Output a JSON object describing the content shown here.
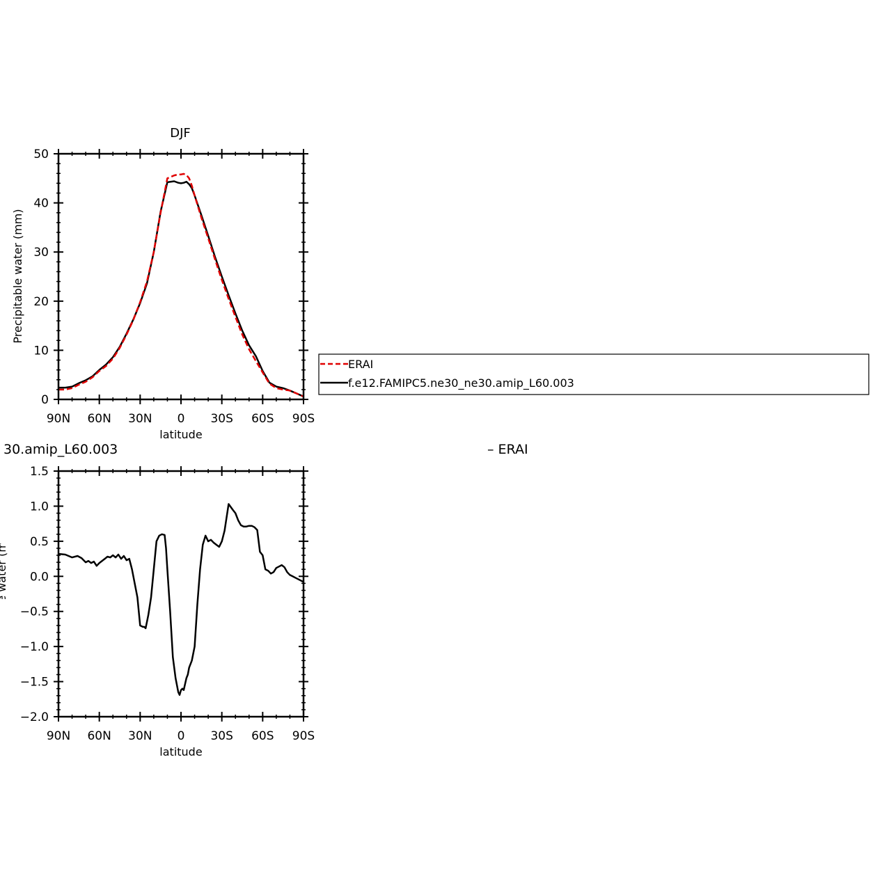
{
  "chart_data": [
    {
      "type": "line",
      "title": "DJF",
      "xlabel": "latitude",
      "ylabel": "Precipitable water (mm)",
      "xlim": [
        90,
        -90
      ],
      "ylim": [
        0,
        50
      ],
      "xticks": [
        "90N",
        "60N",
        "30N",
        "0",
        "30S",
        "60S",
        "90S"
      ],
      "xtick_values": [
        90,
        60,
        30,
        0,
        -30,
        -60,
        -90
      ],
      "yticks": [
        "0",
        "10",
        "20",
        "30",
        "40",
        "50"
      ],
      "ytick_values": [
        0,
        10,
        20,
        30,
        40,
        50
      ],
      "series": [
        {
          "name": "ERAI",
          "color": "#e00000",
          "dashed": true,
          "x": [
            90,
            85,
            80,
            75,
            70,
            65,
            60,
            55,
            50,
            45,
            40,
            35,
            30,
            25,
            20,
            15,
            10,
            5,
            2,
            0,
            -2,
            -4,
            -6,
            -8,
            -10,
            -15,
            -20,
            -25,
            -30,
            -35,
            -40,
            -45,
            -50,
            -55,
            -60,
            -65,
            -70,
            -75,
            -80,
            -85,
            -90
          ],
          "y": [
            2.0,
            2.0,
            2.3,
            3.0,
            3.6,
            4.5,
            5.8,
            6.8,
            8.3,
            10.5,
            13.2,
            16.2,
            19.8,
            24.0,
            30.0,
            38.0,
            45.0,
            45.6,
            45.8,
            45.8,
            45.9,
            45.7,
            45.0,
            43.5,
            41.5,
            37.0,
            32.8,
            28.5,
            24.3,
            20.5,
            16.8,
            13.2,
            10.2,
            7.8,
            5.5,
            3.2,
            2.3,
            2.0,
            1.8,
            1.2,
            0.6
          ]
        },
        {
          "name": "f.e12.FAMIPC5.ne30_ne30.amip_L60.003",
          "color": "#000000",
          "dashed": false,
          "x": [
            90,
            85,
            80,
            75,
            70,
            65,
            60,
            55,
            50,
            45,
            40,
            35,
            30,
            25,
            20,
            15,
            10,
            5,
            2,
            0,
            -2,
            -4,
            -6,
            -8,
            -10,
            -15,
            -20,
            -25,
            -30,
            -35,
            -40,
            -45,
            -50,
            -55,
            -60,
            -65,
            -70,
            -75,
            -80,
            -85,
            -90
          ],
          "y": [
            2.4,
            2.4,
            2.6,
            3.3,
            3.9,
            4.7,
            6.0,
            7.1,
            8.6,
            10.7,
            13.4,
            16.3,
            19.6,
            23.6,
            30.0,
            38.2,
            44.2,
            44.4,
            44.1,
            44.0,
            44.1,
            44.3,
            43.8,
            43.0,
            41.5,
            37.5,
            33.3,
            29.0,
            25.0,
            21.2,
            17.5,
            14.0,
            11.0,
            8.8,
            5.8,
            3.4,
            2.6,
            2.3,
            1.8,
            1.2,
            0.6
          ]
        }
      ],
      "legend": {
        "placement": "right",
        "entries": [
          "ERAI",
          "f.e12.FAMIPC5.ne30_ne30.amip_L60.003"
        ]
      }
    },
    {
      "type": "line",
      "title_left": "30.amip_L60.003",
      "title_right": "– ERAI",
      "xlabel": "latitude",
      "ylabel": "Precipitable water (mm)",
      "xlim": [
        90,
        -90
      ],
      "ylim": [
        -2.0,
        1.5
      ],
      "xticks": [
        "90N",
        "60N",
        "30N",
        "0",
        "30S",
        "60S",
        "90S"
      ],
      "xtick_values": [
        90,
        60,
        30,
        0,
        -30,
        -60,
        -90
      ],
      "yticks": [
        "1.5",
        "1.0",
        "0.5",
        "0.0",
        "−0.5",
        "−1.0",
        "−1.5",
        "−2.0"
      ],
      "ytick_values": [
        1.5,
        1.0,
        0.5,
        0.0,
        -0.5,
        -1.0,
        -1.5,
        -2.0
      ],
      "series": [
        {
          "color": "#000000",
          "x": [
            90,
            85,
            80,
            76,
            73,
            70,
            68,
            66,
            64,
            62,
            60,
            58,
            56,
            54,
            52,
            50,
            48,
            46,
            44,
            42,
            40,
            38,
            36,
            34,
            32,
            30,
            28,
            27,
            26,
            24,
            22,
            20,
            18,
            16,
            14,
            12,
            11,
            10,
            8,
            6,
            4,
            2,
            1,
            0,
            -1,
            -2,
            -4,
            -5,
            -6,
            -8,
            -10,
            -12,
            -14,
            -16,
            -18,
            -20,
            -22,
            -24,
            -26,
            -28,
            -30,
            -32,
            -35,
            -38,
            -40,
            -42,
            -44,
            -46,
            -48,
            -50,
            -52,
            -54,
            -56,
            -58,
            -60,
            -62,
            -64,
            -66,
            -68,
            -70,
            -72,
            -74,
            -76,
            -78,
            -80,
            -82,
            -84,
            -86,
            -88,
            -90
          ],
          "y": [
            0.32,
            0.31,
            0.27,
            0.29,
            0.26,
            0.2,
            0.22,
            0.19,
            0.21,
            0.15,
            0.19,
            0.22,
            0.25,
            0.28,
            0.27,
            0.3,
            0.27,
            0.31,
            0.25,
            0.29,
            0.23,
            0.25,
            0.1,
            -0.1,
            -0.3,
            -0.7,
            -0.72,
            -0.72,
            -0.74,
            -0.55,
            -0.3,
            0.1,
            0.5,
            0.58,
            0.6,
            0.59,
            0.4,
            0.1,
            -0.5,
            -1.15,
            -1.45,
            -1.65,
            -1.69,
            -1.62,
            -1.6,
            -1.62,
            -1.45,
            -1.4,
            -1.3,
            -1.2,
            -1.0,
            -0.4,
            0.1,
            0.45,
            0.58,
            0.5,
            0.52,
            0.48,
            0.45,
            0.42,
            0.5,
            0.65,
            1.03,
            0.95,
            0.9,
            0.8,
            0.73,
            0.71,
            0.71,
            0.72,
            0.72,
            0.7,
            0.66,
            0.35,
            0.3,
            0.1,
            0.08,
            0.04,
            0.06,
            0.12,
            0.14,
            0.16,
            0.13,
            0.06,
            0.02,
            0.0,
            -0.02,
            -0.04,
            -0.06,
            -0.08
          ]
        }
      ]
    }
  ]
}
